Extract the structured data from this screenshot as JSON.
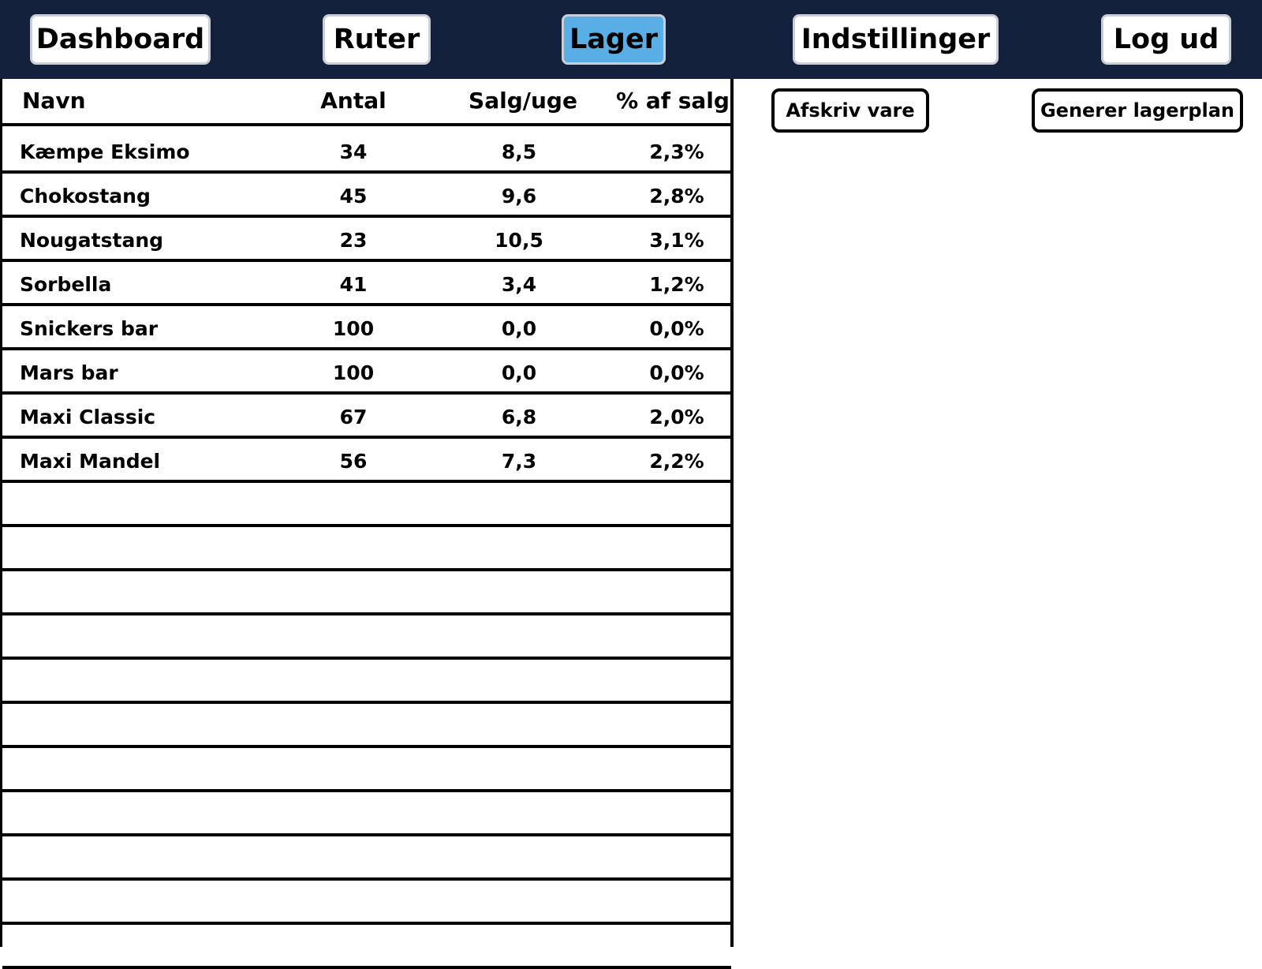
{
  "nav": {
    "items": [
      {
        "label": "Dashboard",
        "active": false
      },
      {
        "label": "Ruter",
        "active": false
      },
      {
        "label": "Lager",
        "active": true
      },
      {
        "label": "Indstillinger",
        "active": false
      },
      {
        "label": "Log ud",
        "active": false
      }
    ],
    "active_color": "#5aaee6",
    "bar_color": "#13213d"
  },
  "inventory": {
    "columns": [
      "Navn",
      "Antal",
      "Salg/uge",
      "% af salg"
    ],
    "rows": [
      {
        "name": "Kæmpe Eksimo",
        "qty": "34",
        "sales_per_week": "8,5",
        "pct_of_sales": "2,3%"
      },
      {
        "name": "Chokostang",
        "qty": "45",
        "sales_per_week": "9,6",
        "pct_of_sales": "2,8%"
      },
      {
        "name": "Nougatstang",
        "qty": "23",
        "sales_per_week": "10,5",
        "pct_of_sales": "3,1%"
      },
      {
        "name": "Sorbella",
        "qty": "41",
        "sales_per_week": "3,4",
        "pct_of_sales": "1,2%"
      },
      {
        "name": "Snickers bar",
        "qty": "100",
        "sales_per_week": "0,0",
        "pct_of_sales": "0,0%"
      },
      {
        "name": "Mars bar",
        "qty": "100",
        "sales_per_week": "0,0",
        "pct_of_sales": "0,0%"
      },
      {
        "name": "Maxi Classic",
        "qty": "67",
        "sales_per_week": "6,8",
        "pct_of_sales": "2,0%"
      },
      {
        "name": "Maxi Mandel",
        "qty": "56",
        "sales_per_week": "7,3",
        "pct_of_sales": "2,2%"
      }
    ]
  },
  "actions": {
    "writeoff_label": "Afskriv vare",
    "generate_plan_label": "Generer lagerplan"
  }
}
